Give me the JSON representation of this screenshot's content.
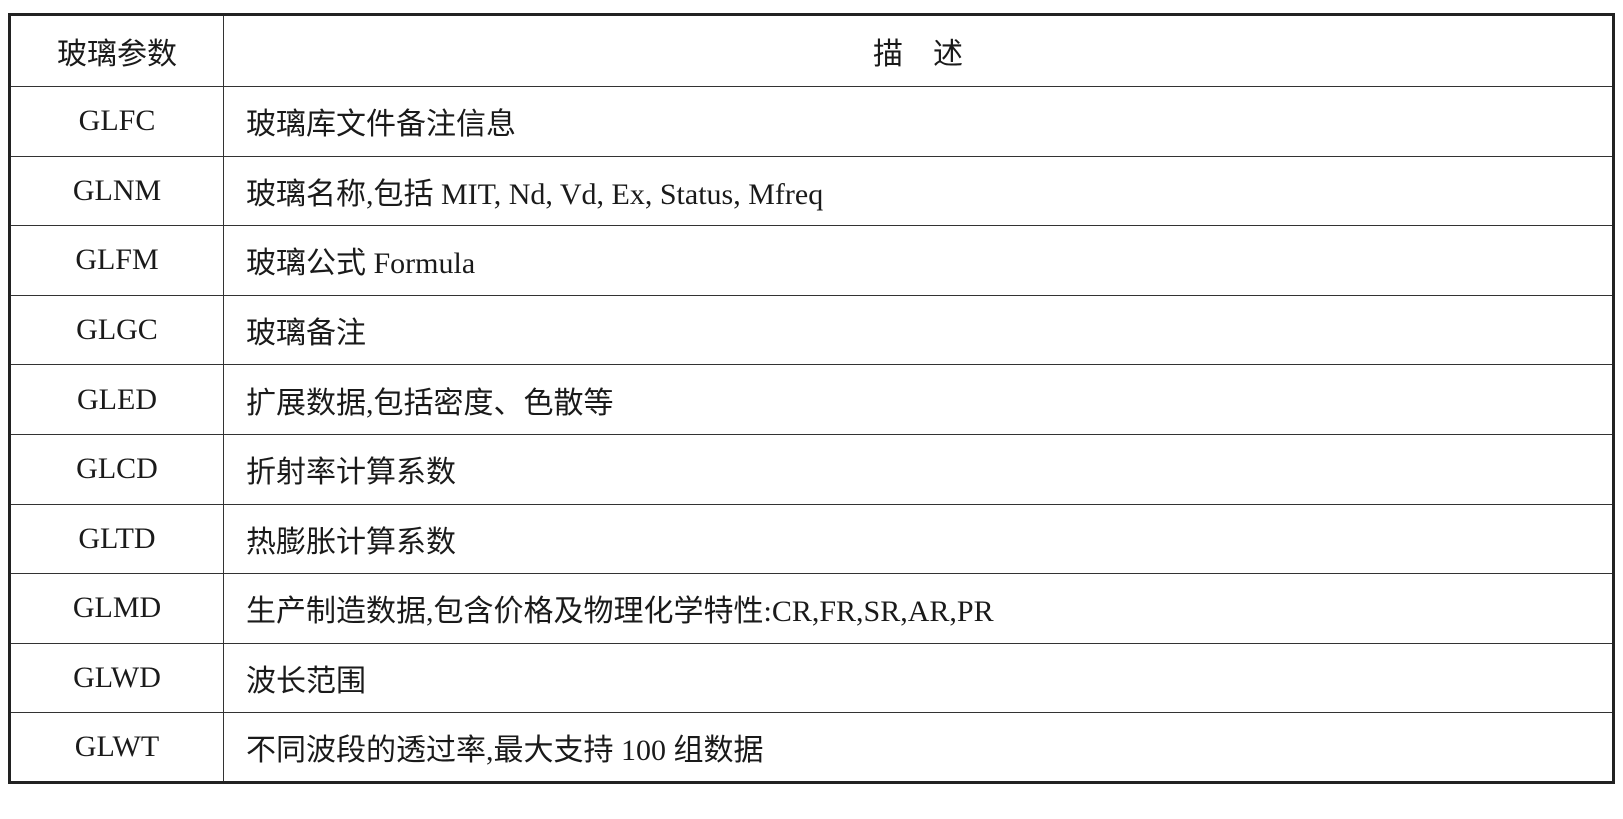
{
  "table": {
    "headers": [
      "玻璃参数",
      "描　述"
    ],
    "rows": [
      {
        "param": "GLFC",
        "description": "玻璃库文件备注信息"
      },
      {
        "param": "GLNM",
        "description": "玻璃名称,包括 MIT, Nd, Vd, Ex, Status, Mfreq"
      },
      {
        "param": "GLFM",
        "description": "玻璃公式 Formula"
      },
      {
        "param": "GLGC",
        "description": "玻璃备注"
      },
      {
        "param": "GLED",
        "description": "扩展数据,包括密度、色散等"
      },
      {
        "param": "GLCD",
        "description": "折射率计算系数"
      },
      {
        "param": "GLTD",
        "description": "热膨胀计算系数"
      },
      {
        "param": "GLMD",
        "description": "生产制造数据,包含价格及物理化学特性:CR,FR,SR,AR,PR"
      },
      {
        "param": "GLWD",
        "description": "波长范围"
      },
      {
        "param": "GLWT",
        "description": "不同波段的透过率,最大支持 100 组数据"
      }
    ]
  }
}
